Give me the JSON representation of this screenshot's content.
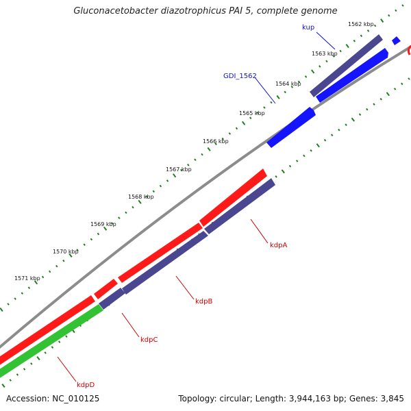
{
  "title": "Gluconacetobacter diazotrophicus PAI 5, complete genome",
  "footer": {
    "accession": "Accession: NC_010125",
    "summary": "Topology: circular; Length: 3,944,163 bp; Genes: 3,845"
  },
  "colors": {
    "backbone": "#8c8c8c",
    "ticks": "#1e7d1e",
    "red": "#ff1a1a",
    "purple": "#4a4690",
    "blue": "#1414ff",
    "green": "#33c233",
    "label_red": "#cc0000",
    "label_blue": "#1010cc"
  },
  "ruler": {
    "ticks": [
      {
        "label": "1562 kbp"
      },
      {
        "label": "1563 kbp"
      },
      {
        "label": "1564 kbp"
      },
      {
        "label": "1565 kbp"
      },
      {
        "label": "1566 kbp"
      },
      {
        "label": "1567 kbp"
      },
      {
        "label": "1568 kbp"
      },
      {
        "label": "1569 kbp"
      },
      {
        "label": "1570 kbp"
      },
      {
        "label": "1571 kbp"
      }
    ]
  },
  "genes": [
    {
      "name": "kup",
      "color": "blue"
    },
    {
      "name": "GDI_1562",
      "color": "blue"
    },
    {
      "name": "kdpA",
      "color": "red"
    },
    {
      "name": "kdpB",
      "color": "red"
    },
    {
      "name": "kdpC",
      "color": "red"
    },
    {
      "name": "kdpD",
      "color": "red"
    }
  ]
}
